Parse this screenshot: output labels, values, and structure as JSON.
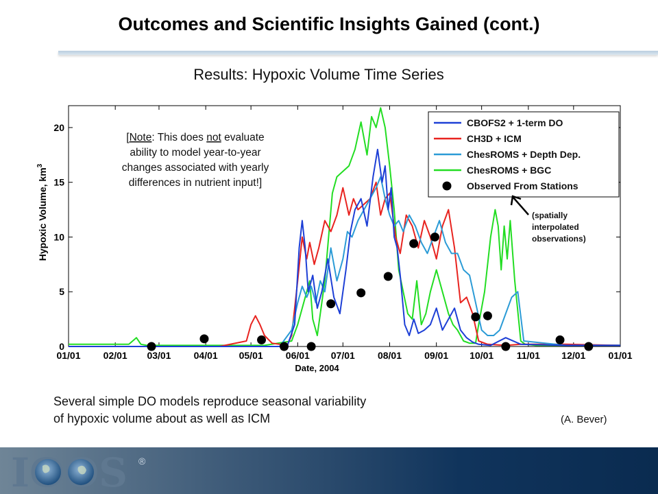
{
  "slide": {
    "title": "Outcomes and Scientific Insights Gained (cont.)",
    "subtitle": "Results: Hypoxic Volume Time Series",
    "caption_line1": "Several simple DO models reproduce seasonal variability",
    "caption_line2": "of hypoxic volume about as well as ICM",
    "credit": "(A. Bever)",
    "logo_text": "IOOS",
    "logo_mark": "®"
  },
  "note": {
    "lines": [
      [
        "[",
        "Note",
        ": This does ",
        "not",
        " evaluate"
      ],
      [
        "ability to model year-to-year"
      ],
      [
        "changes associated with yearly"
      ],
      [
        "differences in nutrient input!]"
      ]
    ]
  },
  "annotation": {
    "lines": [
      "(spatially",
      "interpolated",
      "observations)"
    ]
  },
  "chart_data": {
    "type": "line",
    "title": "",
    "xlabel": "Date, 2004",
    "ylabel": "Hypoxic Volume, km",
    "ylabel_superscript": "3",
    "xlim": [
      0,
      366
    ],
    "ylim": [
      0,
      22
    ],
    "grid": false,
    "legend_position": "top-right",
    "x_ticks": [
      {
        "x": 0,
        "label": "01/01"
      },
      {
        "x": 31,
        "label": "02/01"
      },
      {
        "x": 60,
        "label": "03/01"
      },
      {
        "x": 91,
        "label": "04/01"
      },
      {
        "x": 121,
        "label": "05/01"
      },
      {
        "x": 152,
        "label": "06/01"
      },
      {
        "x": 182,
        "label": "07/01"
      },
      {
        "x": 213,
        "label": "08/01"
      },
      {
        "x": 244,
        "label": "09/01"
      },
      {
        "x": 274,
        "label": "10/01"
      },
      {
        "x": 305,
        "label": "11/01"
      },
      {
        "x": 335,
        "label": "12/01"
      },
      {
        "x": 366,
        "label": "01/01"
      }
    ],
    "y_ticks": [
      0,
      5,
      10,
      15,
      20
    ],
    "series": [
      {
        "name": "ChesROMS + BGC",
        "color": "#22dd22",
        "x": [
          0,
          40,
          45,
          48,
          52,
          60,
          100,
          130,
          148,
          152,
          160,
          162,
          165,
          170,
          175,
          178,
          182,
          186,
          190,
          194,
          198,
          201,
          204,
          207,
          210,
          213,
          216,
          219,
          222,
          225,
          228,
          231,
          234,
          237,
          240,
          244,
          248,
          252,
          255,
          258,
          262,
          266,
          270,
          272,
          276,
          280,
          283,
          285,
          287,
          289,
          291,
          293,
          296,
          300,
          303,
          310,
          330,
          366
        ],
        "y": [
          0.2,
          0.2,
          0.8,
          0.2,
          0.1,
          0.1,
          0.1,
          0.1,
          0.5,
          2.0,
          6.0,
          2.5,
          1.0,
          6.0,
          14.0,
          15.5,
          16.0,
          16.5,
          18.0,
          20.5,
          17.5,
          21.0,
          20.0,
          21.8,
          20.0,
          16.5,
          12.5,
          7.0,
          5.0,
          3.0,
          2.5,
          6.0,
          2.0,
          3.0,
          5.0,
          7.0,
          5.0,
          3.0,
          2.0,
          1.5,
          0.5,
          0.3,
          0.3,
          2.0,
          5.0,
          10.0,
          12.5,
          11.0,
          7.0,
          11.0,
          8.0,
          11.5,
          6.0,
          0.5,
          0.2,
          0.1,
          0.1,
          0.1
        ]
      },
      {
        "name": "CH3D + ICM",
        "color": "#e8231f",
        "x": [
          0,
          100,
          118,
          121,
          124,
          127,
          130,
          135,
          140,
          145,
          148,
          152,
          155,
          158,
          160,
          163,
          166,
          170,
          174,
          178,
          182,
          186,
          189,
          192,
          196,
          200,
          204,
          207,
          210,
          213,
          217,
          220,
          224,
          228,
          232,
          236,
          240,
          244,
          248,
          252,
          256,
          260,
          264,
          268,
          272,
          278,
          290,
          300,
          330,
          366
        ],
        "y": [
          0,
          0,
          0.5,
          2.0,
          2.8,
          2.0,
          1.0,
          0.3,
          0.2,
          0.1,
          1.0,
          6.0,
          10.0,
          8.0,
          9.5,
          7.5,
          9.0,
          11.5,
          10.5,
          12.0,
          14.5,
          12.0,
          13.5,
          12.5,
          13.0,
          13.5,
          15.0,
          12.0,
          13.5,
          14.0,
          10.0,
          8.5,
          12.0,
          11.0,
          9.0,
          11.5,
          10.0,
          8.0,
          11.0,
          12.5,
          9.0,
          4.0,
          4.5,
          3.0,
          0.5,
          0.2,
          0.1,
          0.2,
          0.2,
          0.1
        ]
      },
      {
        "name": "ChesROMS + Depth Dep.",
        "color": "#2b9bd6",
        "x": [
          0,
          140,
          148,
          152,
          155,
          158,
          161,
          164,
          167,
          170,
          174,
          178,
          182,
          185,
          188,
          192,
          196,
          200,
          204,
          207,
          210,
          213,
          216,
          219,
          222,
          226,
          230,
          234,
          238,
          242,
          246,
          250,
          254,
          258,
          262,
          266,
          270,
          274,
          278,
          282,
          286,
          290,
          294,
          298,
          302,
          330,
          366
        ],
        "y": [
          0,
          0,
          1.5,
          4.0,
          5.5,
          4.5,
          5.5,
          4.0,
          6.0,
          5.0,
          9.0,
          6.0,
          8.0,
          10.5,
          10.0,
          11.5,
          12.5,
          13.5,
          14.5,
          15.5,
          13.5,
          12.0,
          11.0,
          11.5,
          10.5,
          12.0,
          11.0,
          9.5,
          8.5,
          10.0,
          11.5,
          9.5,
          8.5,
          8.5,
          7.0,
          6.5,
          4.0,
          1.5,
          1.0,
          1.0,
          1.5,
          3.0,
          4.5,
          5.0,
          0.5,
          0.1,
          0.1
        ]
      },
      {
        "name": "CBOFS2 + 1-term DO",
        "color": "#1d3fd6",
        "x": [
          0,
          145,
          150,
          153,
          155,
          157,
          159,
          162,
          165,
          168,
          172,
          176,
          180,
          184,
          187,
          190,
          194,
          198,
          202,
          205,
          208,
          210,
          212,
          214,
          216,
          218,
          220,
          223,
          226,
          229,
          232,
          236,
          240,
          244,
          248,
          252,
          256,
          260,
          264,
          268,
          272,
          280,
          290,
          300,
          330,
          366
        ],
        "y": [
          0,
          0,
          2.0,
          9.0,
          11.5,
          9.0,
          5.0,
          6.5,
          3.5,
          5.0,
          8.0,
          4.5,
          3.0,
          7.0,
          10.5,
          12.5,
          13.5,
          11.0,
          15.5,
          18.0,
          15.0,
          16.5,
          12.5,
          14.5,
          10.0,
          9.0,
          6.5,
          2.0,
          1.0,
          2.5,
          1.2,
          1.5,
          2.0,
          3.5,
          1.5,
          2.5,
          3.5,
          1.5,
          0.8,
          0.4,
          0.2,
          0.1,
          0.8,
          0.2,
          0.1,
          0.1
        ]
      },
      {
        "name": "Observed From Stations",
        "color": "#000000",
        "marker": "dot",
        "x": [
          55,
          90,
          128,
          143,
          161,
          174,
          194,
          212,
          229,
          243,
          270,
          278,
          290,
          326,
          345
        ],
        "y": [
          0.0,
          0.7,
          0.6,
          0.0,
          0.0,
          3.9,
          4.9,
          6.4,
          9.4,
          10.0,
          2.7,
          2.8,
          0.0,
          0.6,
          0.0
        ]
      }
    ],
    "legend": [
      {
        "label": "CBOFS2 + 1-term DO",
        "color": "#1d3fd6",
        "kind": "line"
      },
      {
        "label": "CH3D + ICM",
        "color": "#e8231f",
        "kind": "line"
      },
      {
        "label": "ChesROMS + Depth Dep.",
        "color": "#2b9bd6",
        "kind": "line"
      },
      {
        "label": "ChesROMS + BGC",
        "color": "#22dd22",
        "kind": "line"
      },
      {
        "label": "Observed From Stations",
        "color": "#000000",
        "kind": "dot"
      }
    ]
  }
}
